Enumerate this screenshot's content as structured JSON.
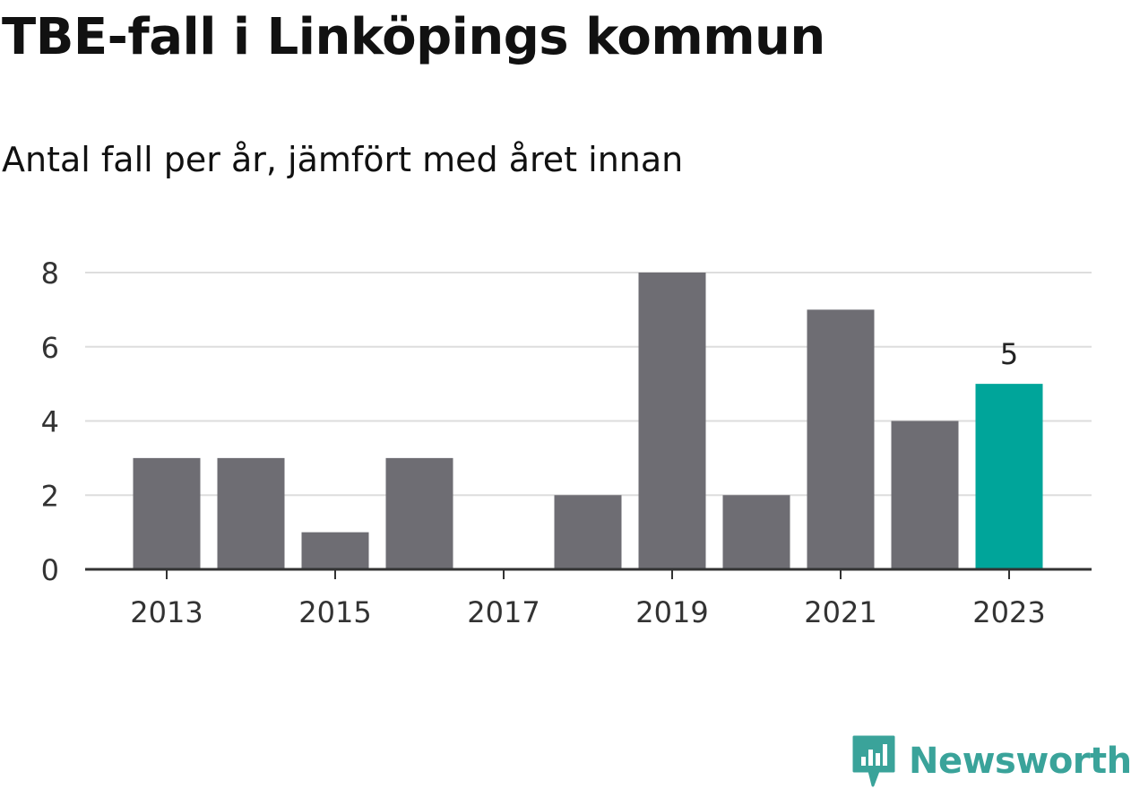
{
  "title": "TBE-fall i Linköpings kommun",
  "subtitle": "Antal fall per år, jämfört med året innan",
  "brand": {
    "name": "Newsworthy",
    "icon": "newsworthy-logo-icon",
    "color": "#3aa39a"
  },
  "chart_data": {
    "type": "bar",
    "categories": [
      "2013",
      "2014",
      "2015",
      "2016",
      "2017",
      "2018",
      "2019",
      "2020",
      "2021",
      "2022",
      "2023"
    ],
    "values": [
      3,
      3,
      1,
      3,
      0,
      2,
      8,
      2,
      7,
      4,
      5
    ],
    "x_tick_labels": [
      "2013",
      "2015",
      "2017",
      "2019",
      "2021",
      "2023"
    ],
    "y_ticks": [
      0,
      2,
      4,
      6,
      8
    ],
    "ylim": [
      0,
      8
    ],
    "grid": true,
    "xlabel": "",
    "ylabel": "",
    "colors": {
      "bar": "#6e6d73",
      "highlight": "#00a59a",
      "grid": "#dddddd",
      "axis": "#333333"
    },
    "highlight_index": 10,
    "annotations": [
      {
        "category": "2023",
        "text": "5"
      }
    ]
  }
}
